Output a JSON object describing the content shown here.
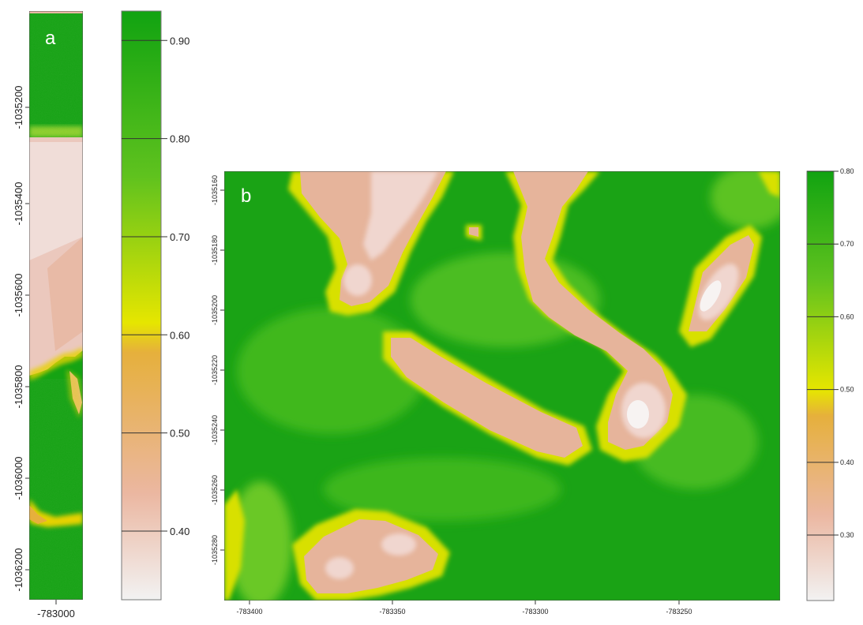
{
  "panels": [
    {
      "id": "a",
      "label": "a",
      "y_ticks": [
        "-1035200",
        "-1035400",
        "-1035600",
        "-1035800",
        "-1036000",
        "-1036200"
      ],
      "x_ticks": [
        "-783000"
      ],
      "legend_ticks": [
        "0.90",
        "0.80",
        "0.70",
        "0.60",
        "0.50",
        "0.40"
      ],
      "legend_range": [
        0.33,
        0.93
      ]
    },
    {
      "id": "b",
      "label": "b",
      "y_ticks": [
        "-1035160",
        "-1035180",
        "-1035200",
        "-1035220",
        "-1035240",
        "-1035260",
        "-1035280"
      ],
      "x_ticks": [
        "-783400",
        "-783350",
        "-783300",
        "-783250"
      ],
      "legend_ticks": [
        "0.80",
        "0.70",
        "0.60",
        "0.50",
        "0.40",
        "0.30"
      ],
      "legend_range": [
        0.21,
        0.8
      ]
    }
  ],
  "colors": {
    "high": "#11a311",
    "mid_high": "#5fc21e",
    "mid": "#e6e600",
    "mid_low": "#e6b03c",
    "low": "#ebb7a1",
    "lowest": "#f2f2f2"
  }
}
